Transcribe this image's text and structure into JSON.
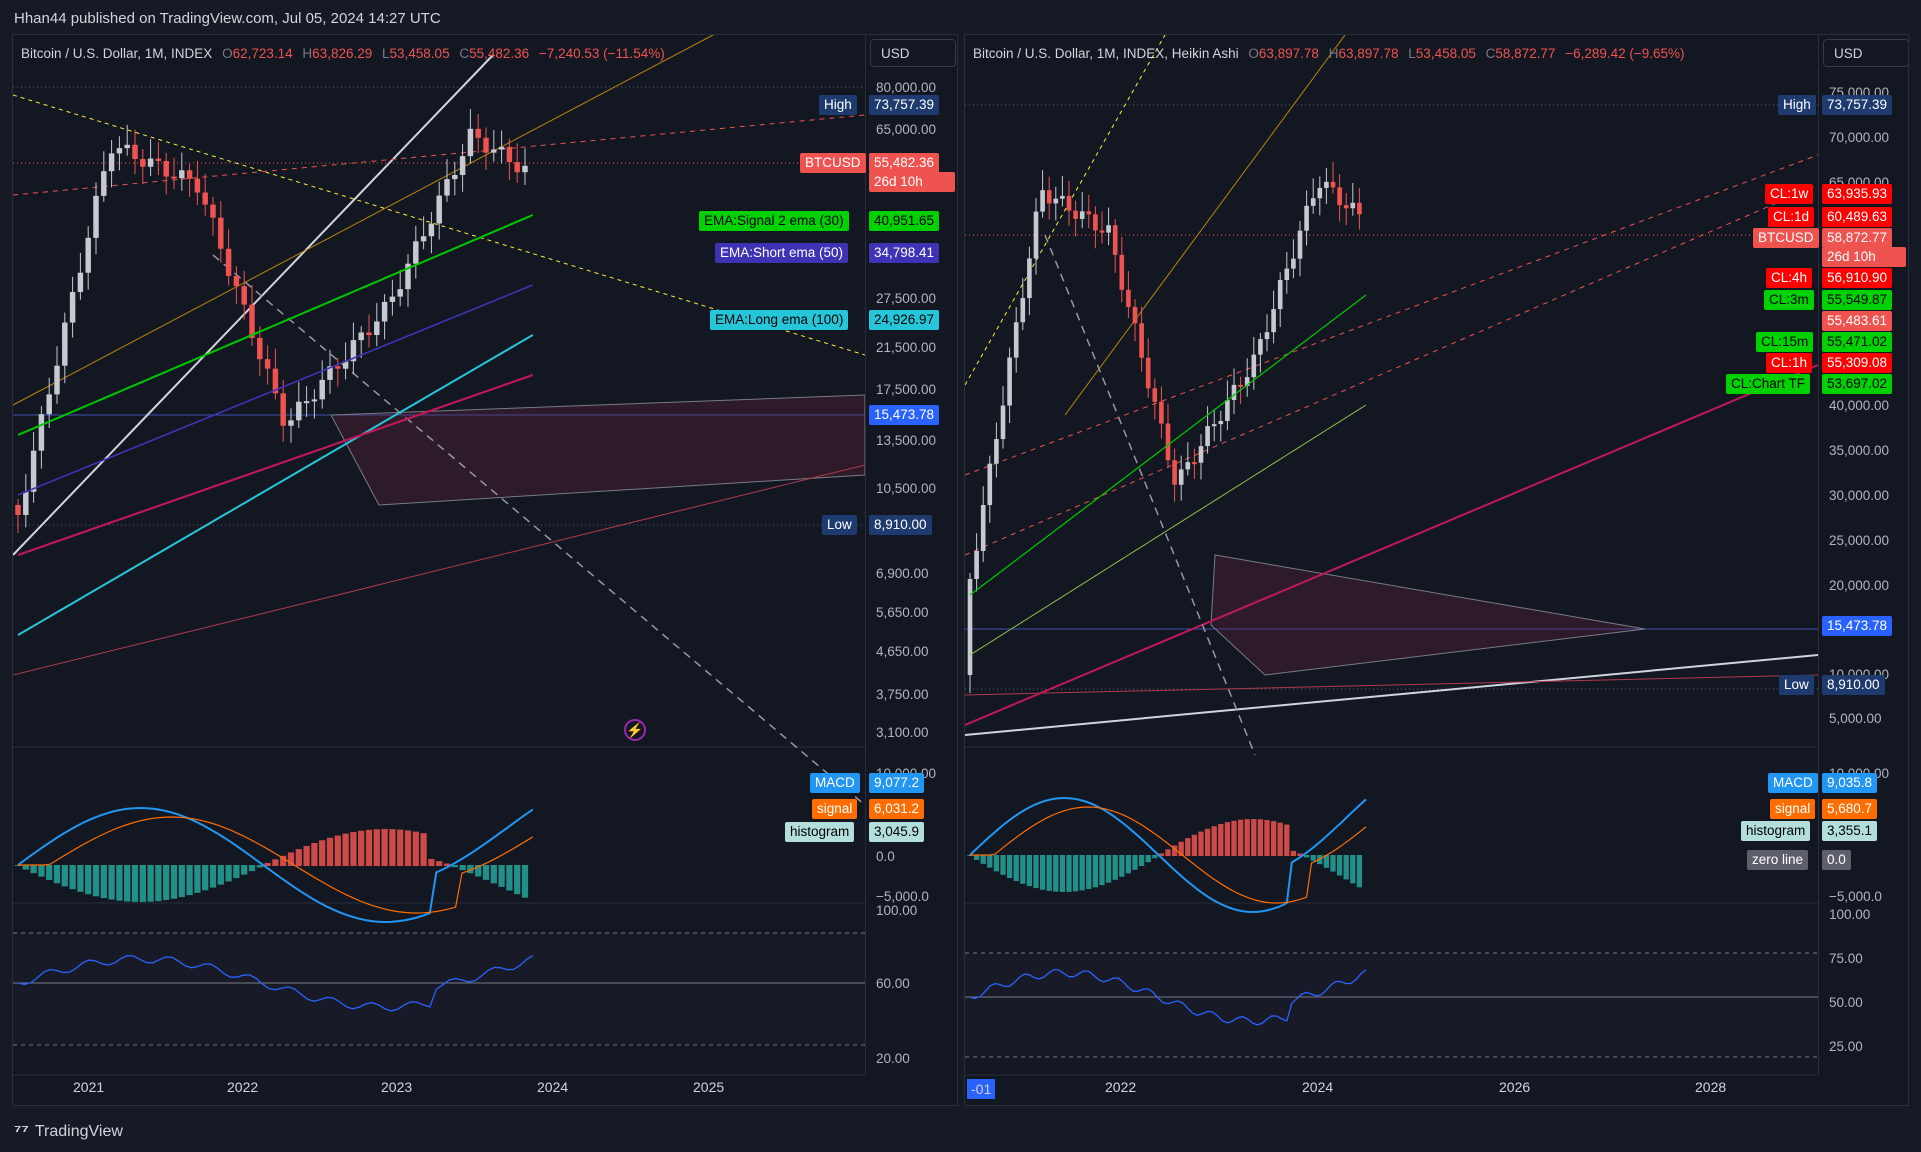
{
  "header": {
    "published": "Hhan44 published on TradingView.com, Jul 05, 2024 14:27 UTC"
  },
  "left": {
    "symbol": "Bitcoin / U.S. Dollar, 1M, INDEX",
    "ohlc": {
      "o": "62,723.14",
      "h": "63,826.29",
      "l": "53,458.05",
      "c": "55,482.36",
      "chg": "−7,240.53 (−11.54%)"
    },
    "currency": "USD",
    "price_ticks": [
      "80,000.00",
      "65,000.00",
      "27,500.00",
      "21,500.00",
      "17,500.00",
      "13,500.00",
      "10,500.00",
      "6,900.00",
      "5,650.00",
      "4,650.00",
      "3,750.00",
      "3,100.00"
    ],
    "labels": {
      "high": {
        "name": "High",
        "value": "73,757.39"
      },
      "btc": {
        "name": "BTCUSD",
        "value": "55,482.36",
        "countdown": "26d 10h"
      },
      "ema30": {
        "name": "EMA:Signal 2 ema (30)",
        "value": "40,951.65"
      },
      "ema50": {
        "name": "EMA:Short ema (50)",
        "value": "34,798.41"
      },
      "ema100": {
        "name": "EMA:Long ema (100)",
        "value": "24,926.97"
      },
      "level": {
        "value": "15,473.78"
      },
      "low": {
        "name": "Low",
        "value": "8,910.00"
      }
    },
    "macd": {
      "macd": "9,077.2",
      "signal": "6,031.2",
      "histogram": "3,045.9",
      "ticks": [
        "10,000.00",
        "0.0",
        "−5,000.0"
      ]
    },
    "rsi_ticks": [
      "100.00",
      "60.00",
      "20.00"
    ],
    "x_ticks": [
      "2021",
      "2022",
      "2023",
      "2024",
      "2025"
    ]
  },
  "right": {
    "symbol": "Bitcoin / U.S. Dollar, 1M, INDEX, Heikin Ashi",
    "ohlc": {
      "o": "63,897.78",
      "h": "63,897.78",
      "l": "53,458.05",
      "c": "58,872.77",
      "chg": "−6,289.42 (−9.65%)"
    },
    "currency": "USD",
    "price_ticks": [
      "75,000.00",
      "70,000.00",
      "65,000.00",
      "40,000.00",
      "35,000.00",
      "30,000.00",
      "25,000.00",
      "20,000.00",
      "10,000.00",
      "5,000.00"
    ],
    "labels": {
      "high": {
        "name": "High",
        "value": "73,757.39"
      },
      "cl1w": {
        "name": "CL:1w",
        "value": "63,935.93"
      },
      "cl1d": {
        "name": "CL:1d",
        "value": "60,489.63"
      },
      "btc": {
        "name": "BTCUSD",
        "value": "58,872.77",
        "countdown": "26d 10h"
      },
      "cl4h": {
        "name": "CL:4h",
        "value": "56,910.90"
      },
      "cl3m": {
        "name": "CL:3m",
        "value": "55,549.87"
      },
      "extra": {
        "value": "55,483.61"
      },
      "cl15m": {
        "name": "CL:15m",
        "value": "55,471.02"
      },
      "cl1h": {
        "name": "CL:1h",
        "value": "55,309.08"
      },
      "cltf": {
        "name": "CL:Chart TF",
        "value": "53,697.02"
      },
      "level": {
        "value": "15,473.78"
      },
      "low": {
        "name": "Low",
        "value": "8,910.00"
      }
    },
    "macd": {
      "macd": "9,035.8",
      "signal": "5,680.7",
      "histogram": "3,355.1",
      "zero": "zero line",
      "zero_value": "0.0",
      "ticks": [
        "10,000.00",
        "−5,000.0"
      ]
    },
    "rsi_ticks": [
      "100.00",
      "75.00",
      "50.00",
      "25.00"
    ],
    "x_ticks": [
      "-01",
      "2022",
      "2024",
      "2026",
      "2028"
    ]
  },
  "footer": {
    "brand": "TradingView"
  },
  "colors": {
    "up": "#c7c9d0",
    "down": "#ef5350",
    "ema30": "#00c800",
    "ema50": "#3f33b5",
    "ema100": "#26c6da",
    "macd": "#2196f3",
    "signal": "#ff6d00",
    "hist": "#26a69a"
  }
}
